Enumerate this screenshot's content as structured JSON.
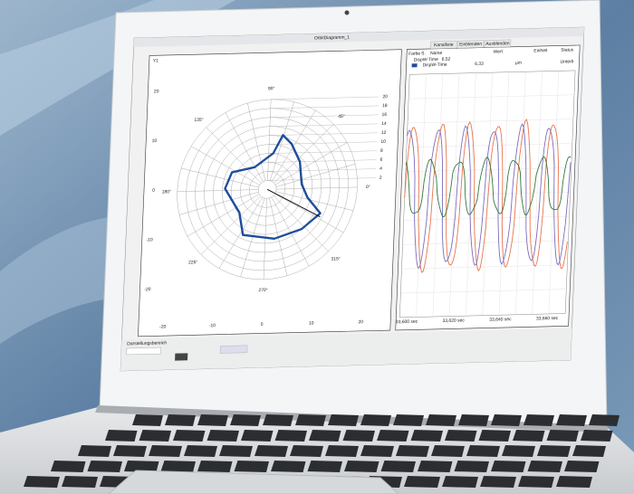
{
  "window": {
    "title": "OrbitDiagramm_1"
  },
  "tabs": [
    "Kanalliste",
    "Einblenden",
    "Ausblenden"
  ],
  "table": {
    "header": [
      "Farbe",
      "S.",
      "Name",
      "Wert",
      "Einheit",
      "Status"
    ],
    "group": {
      "name": "DispW-Time",
      "value": "6,52"
    },
    "rows": [
      [
        "DispW-Time",
        "6,33",
        "µm",
        "Unterb"
      ]
    ]
  },
  "orbit": {
    "y_label": "Y1",
    "angles": [
      "90°",
      "45°",
      "0°",
      "315°",
      "270°",
      "225°",
      "180°",
      "135°"
    ],
    "rings": [
      "20",
      "18",
      "16",
      "14",
      "12",
      "10",
      "8",
      "6",
      "4",
      "2"
    ],
    "yticks": [
      "20",
      "10",
      "0",
      "-10",
      "-20"
    ],
    "xticks": [
      "-20",
      "-10",
      "0",
      "10",
      "20"
    ]
  },
  "timeplot": {
    "xticks": [
      "33,600 sec",
      "33,620 sec",
      "33,640 sec",
      "33,660 sec"
    ]
  },
  "toolbar": {
    "label": "Darstellungsbereich"
  }
}
